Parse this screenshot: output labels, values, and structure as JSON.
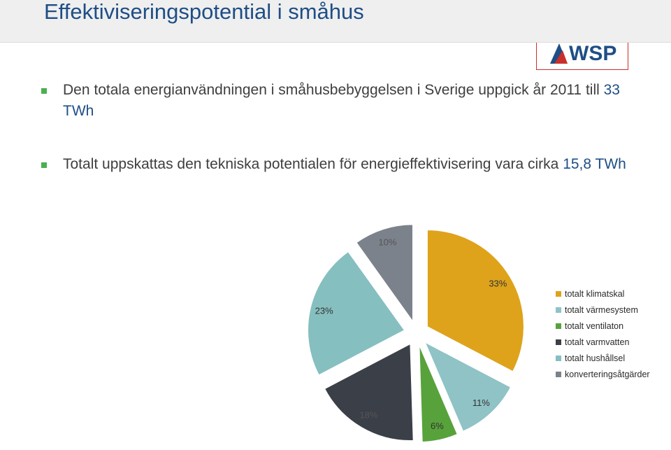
{
  "page": {
    "title": "Effektiviseringspotential i småhus",
    "logo_text": "WSP"
  },
  "bullets": [
    {
      "before": "Den totala energianvändningen i småhusbebyggelsen  i Sverige uppgick år 2011 till ",
      "highlight": "33 TWh"
    },
    {
      "before": "Totalt uppskattas den tekniska potentialen för energieffektivisering vara cirka ",
      "highlight": "15,8 TWh"
    }
  ],
  "colors": {
    "title": "#1e4e86",
    "accent_green": "#4caf50",
    "logo_red": "#c9302c"
  },
  "chart_data": {
    "type": "pie",
    "exploded": true,
    "start": "12 o'clock, clockwise",
    "series": [
      {
        "name": "totalt klimatskal",
        "value": 33,
        "label": "33%",
        "color": "#dea31b"
      },
      {
        "name": "totalt värmesystem",
        "value": 11,
        "label": "11%",
        "color": "#8fc3c6"
      },
      {
        "name": "totalt ventilaton",
        "value": 6,
        "label": "6%",
        "color": "#58a23c"
      },
      {
        "name": "totalt varmvatten",
        "value": 18,
        "label": "18%",
        "color": "#3b3f47"
      },
      {
        "name": "totalt hushållsel",
        "value": 23,
        "label": "23%",
        "color": "#86bfc0"
      },
      {
        "name": "konverteringsåtgärder",
        "value": 10,
        "label": "10%",
        "color": "#7c828b"
      }
    ],
    "legend_position": "right"
  }
}
